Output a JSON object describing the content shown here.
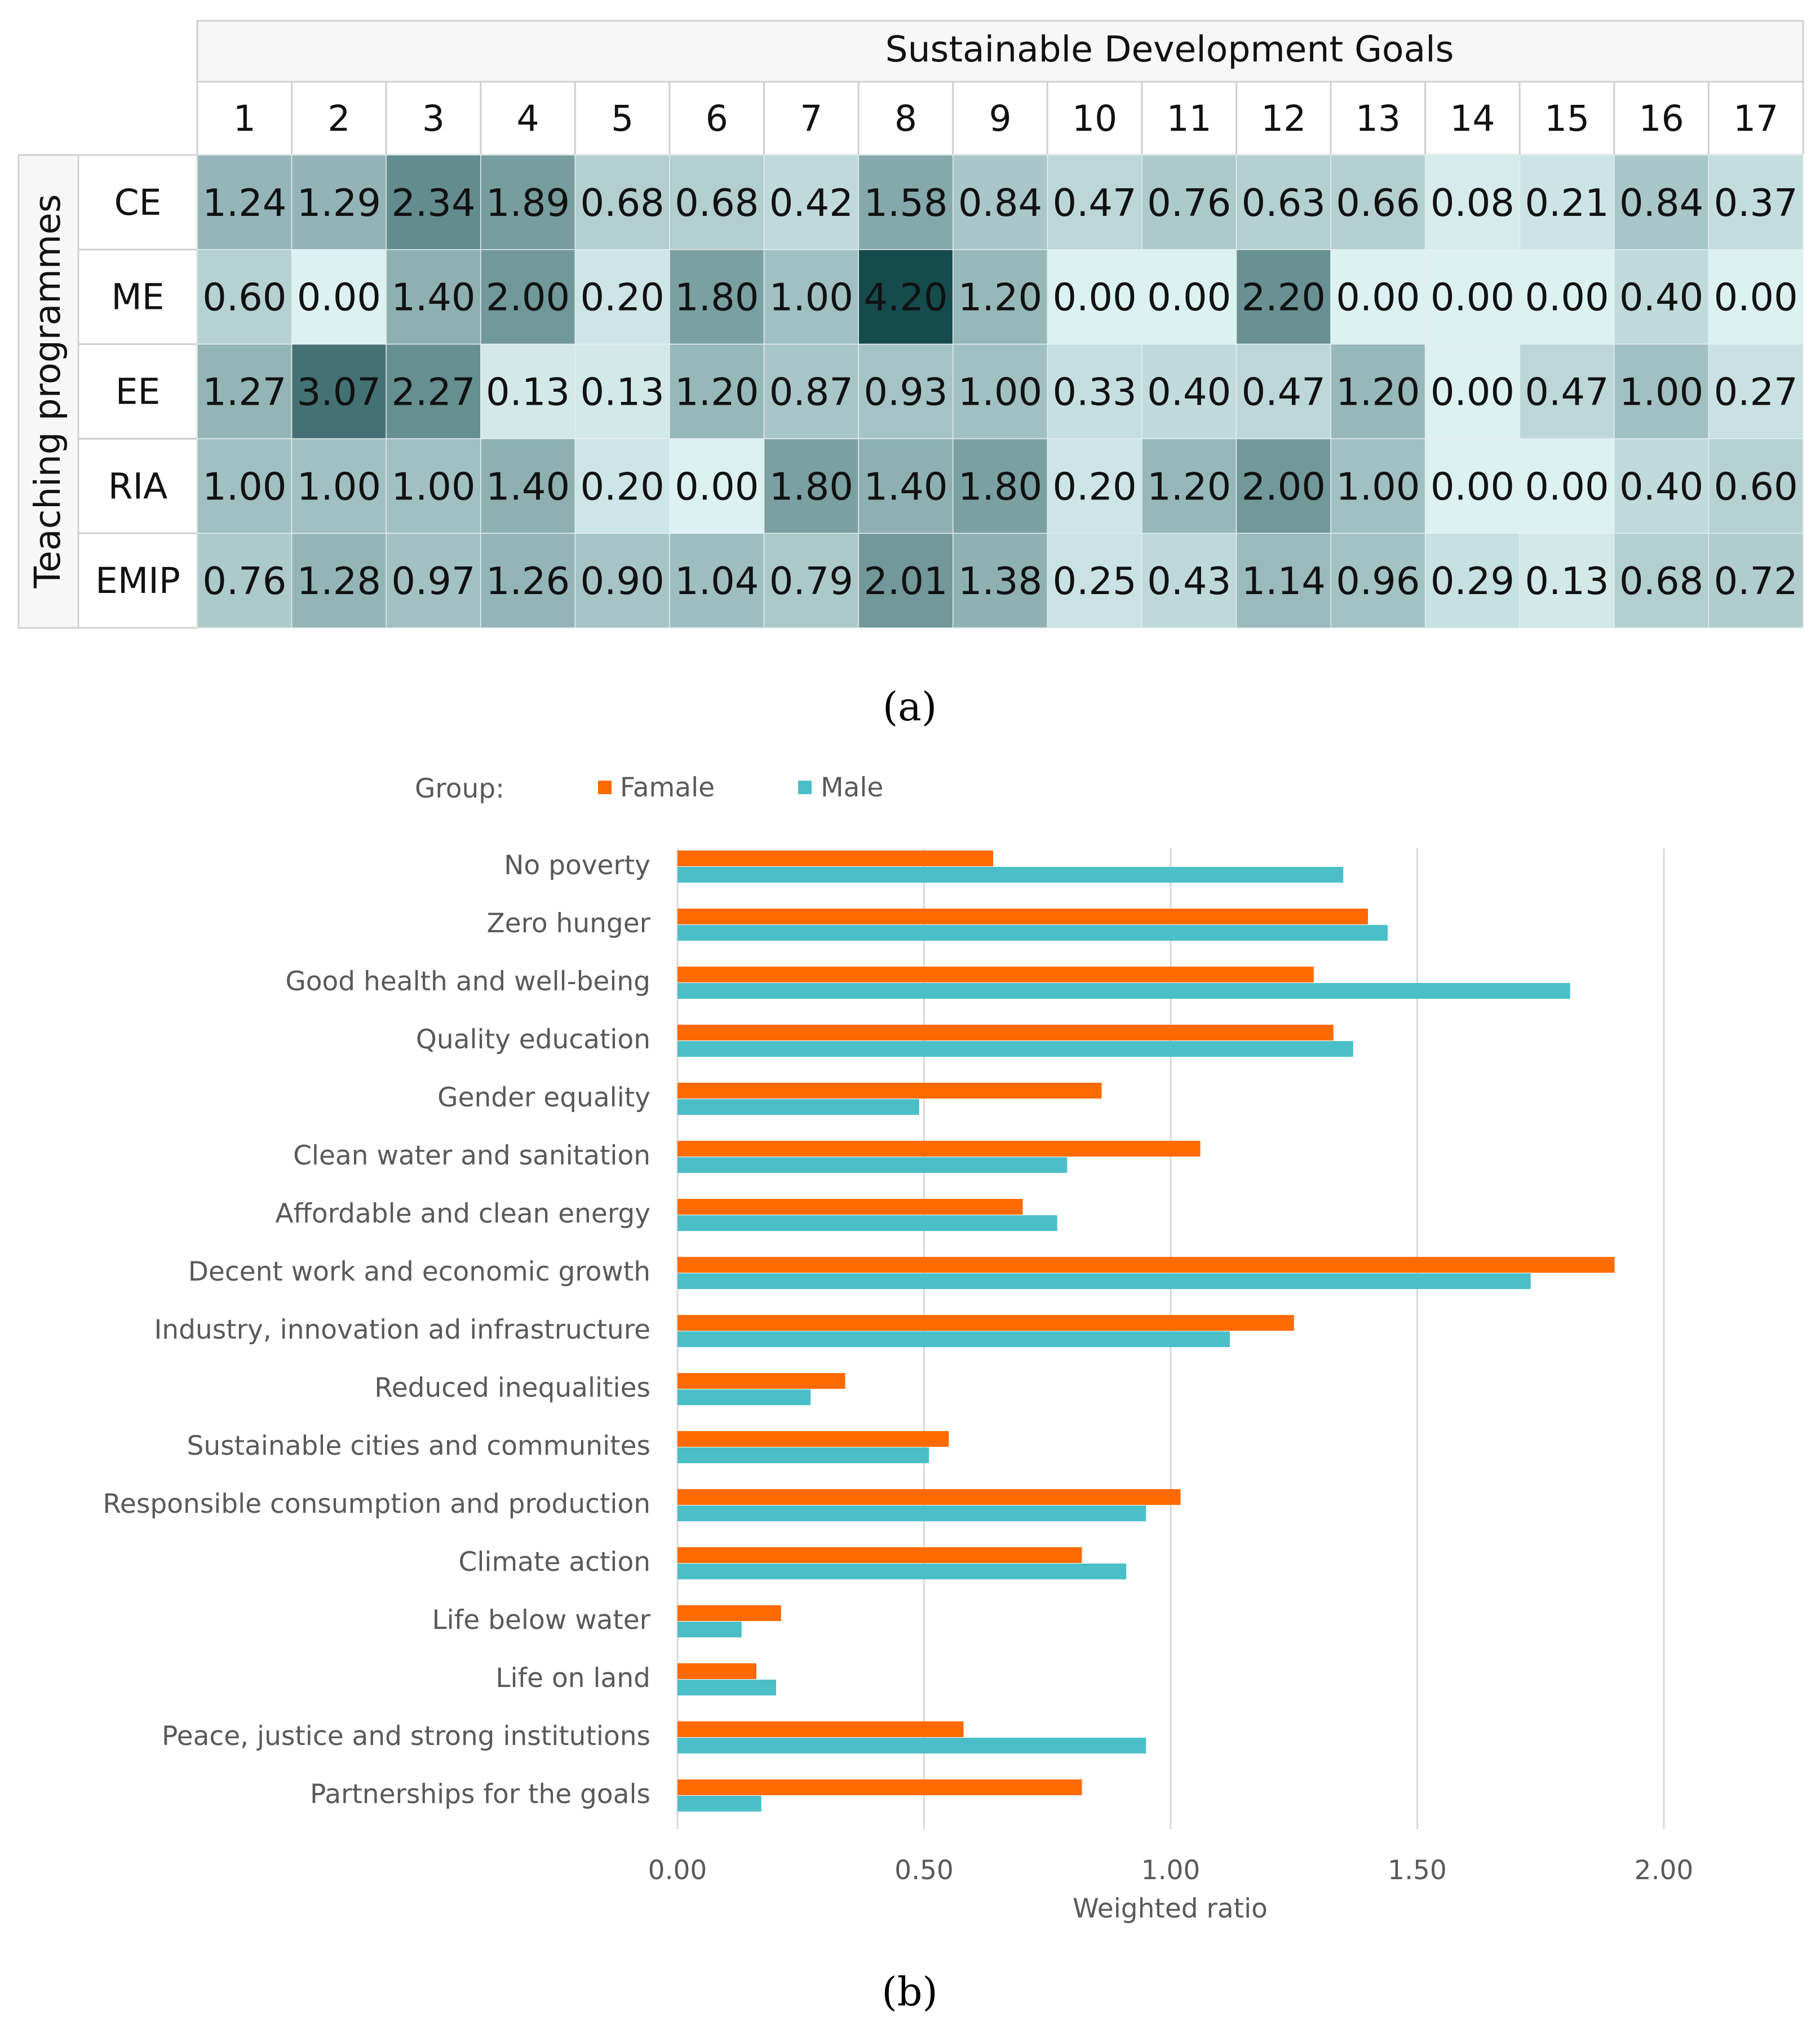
{
  "heatmap": {
    "caption": "(a)",
    "column_group_title": "Sustainable Development Goals",
    "row_group_title": "Teaching programmes",
    "columns": [
      "1",
      "2",
      "3",
      "4",
      "5",
      "6",
      "7",
      "8",
      "9",
      "10",
      "11",
      "12",
      "13",
      "14",
      "15",
      "16",
      "17"
    ],
    "rows": [
      "CE",
      "ME",
      "EE",
      "RIA",
      "EMIP"
    ],
    "color_scale": {
      "low": "#dcf1f2",
      "high": "#154b4d",
      "min": 0,
      "max": 4.2
    },
    "chart_data": {
      "type": "heatmap",
      "x_categories": [
        "1",
        "2",
        "3",
        "4",
        "5",
        "6",
        "7",
        "8",
        "9",
        "10",
        "11",
        "12",
        "13",
        "14",
        "15",
        "16",
        "17"
      ],
      "y_categories": [
        "CE",
        "ME",
        "EE",
        "RIA",
        "EMIP"
      ],
      "values": [
        [
          "1.24",
          "1.29",
          "2.34",
          "1.89",
          "0.68",
          "0.68",
          "0.42",
          "1.58",
          "0.84",
          "0.47",
          "0.76",
          "0.63",
          "0.66",
          "0.08",
          "0.21",
          "0.84",
          "0.37"
        ],
        [
          "0.60",
          "0.00",
          "1.40",
          "2.00",
          "0.20",
          "1.80",
          "1.00",
          "4.20",
          "1.20",
          "0.00",
          "0.00",
          "2.20",
          "0.00",
          "0.00",
          "0.00",
          "0.40",
          "0.00"
        ],
        [
          "1.27",
          "3.07",
          "2.27",
          "0.13",
          "0.13",
          "1.20",
          "0.87",
          "0.93",
          "1.00",
          "0.33",
          "0.40",
          "0.47",
          "1.20",
          "0.00",
          "0.47",
          "1.00",
          "0.27"
        ],
        [
          "1.00",
          "1.00",
          "1.00",
          "1.40",
          "0.20",
          "0.00",
          "1.80",
          "1.40",
          "1.80",
          "0.20",
          "1.20",
          "2.00",
          "1.00",
          "0.00",
          "0.00",
          "0.40",
          "0.60"
        ],
        [
          "0.76",
          "1.28",
          "0.97",
          "1.26",
          "0.90",
          "1.04",
          "0.79",
          "2.01",
          "1.38",
          "0.25",
          "0.43",
          "1.14",
          "0.96",
          "0.29",
          "0.13",
          "0.68",
          "0.72"
        ]
      ],
      "title": "Sustainable Development Goals",
      "xlabel": "Sustainable Development Goals",
      "ylabel": "Teaching programmes"
    }
  },
  "barchart": {
    "caption": "(b)",
    "legend_title": "Group:",
    "colors": {
      "Famale": "#ff6a00",
      "Male": "#4bbfc7",
      "grid": "#d9d9d9",
      "axis_text": "#595959"
    },
    "chart_data": {
      "type": "bar",
      "orientation": "horizontal",
      "categories": [
        "No poverty",
        "Zero hunger",
        "Good health and well-being",
        "Quality education",
        "Gender equality",
        "Clean water and sanitation",
        "Affordable and clean energy",
        "Decent work and economic growth",
        "Industry, innovation ad infrastructure",
        "Reduced inequalities",
        "Sustainable cities and communites",
        "Responsible consumption and production",
        "Climate action",
        "Life below water",
        "Life on land",
        "Peace, justice and strong institutions",
        "Partnerships for the goals"
      ],
      "series": [
        {
          "name": "Famale",
          "values": [
            0.64,
            1.4,
            1.29,
            1.33,
            0.86,
            1.06,
            0.7,
            1.9,
            1.25,
            0.34,
            0.55,
            1.02,
            0.82,
            0.21,
            0.16,
            0.58,
            0.82
          ]
        },
        {
          "name": "Male",
          "values": [
            1.35,
            1.44,
            1.81,
            1.37,
            0.49,
            0.79,
            0.77,
            1.73,
            1.12,
            0.27,
            0.51,
            0.95,
            0.91,
            0.13,
            0.2,
            0.95,
            0.17
          ]
        }
      ],
      "xlabel": "Weighted ratio",
      "xlim": [
        0,
        2.0
      ],
      "xticks": [
        "0.00",
        "0.50",
        "1.00",
        "1.50",
        "2.00"
      ],
      "grid": true,
      "legend": "top-left"
    }
  }
}
